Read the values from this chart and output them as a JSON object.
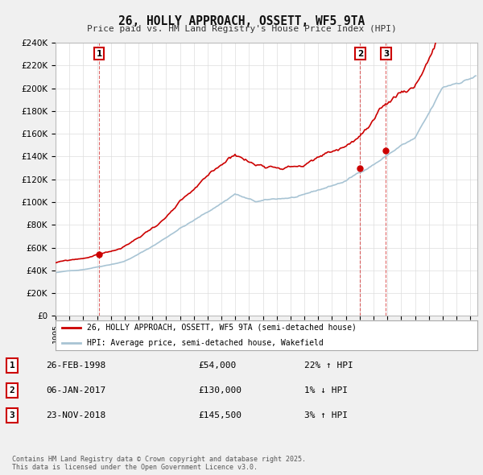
{
  "title": "26, HOLLY APPROACH, OSSETT, WF5 9TA",
  "subtitle": "Price paid vs. HM Land Registry's House Price Index (HPI)",
  "ylim": [
    0,
    240000
  ],
  "yticks": [
    0,
    20000,
    40000,
    60000,
    80000,
    100000,
    120000,
    140000,
    160000,
    180000,
    200000,
    220000,
    240000
  ],
  "bg_color": "#f0f0f0",
  "plot_bg_color": "#ffffff",
  "red_color": "#cc0000",
  "blue_color": "#a8c4d4",
  "grid_color": "#dddddd",
  "purchase_dates": [
    1998.15,
    2017.03,
    2018.9
  ],
  "purchase_prices": [
    54000,
    130000,
    145500
  ],
  "purchase_labels": [
    "1",
    "2",
    "3"
  ],
  "legend_entries": [
    "26, HOLLY APPROACH, OSSETT, WF5 9TA (semi-detached house)",
    "HPI: Average price, semi-detached house, Wakefield"
  ],
  "table_rows": [
    [
      "1",
      "26-FEB-1998",
      "£54,000",
      "22% ↑ HPI"
    ],
    [
      "2",
      "06-JAN-2017",
      "£130,000",
      "1% ↓ HPI"
    ],
    [
      "3",
      "23-NOV-2018",
      "£145,500",
      "3% ↑ HPI"
    ]
  ],
  "footer": "Contains HM Land Registry data © Crown copyright and database right 2025.\nThis data is licensed under the Open Government Licence v3.0."
}
